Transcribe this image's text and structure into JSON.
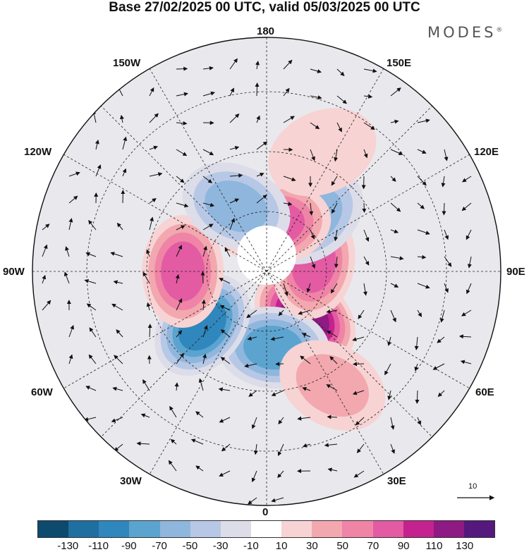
{
  "title": "Base 27/02/2025 00 UTC, valid 05/03/2025 00 UTC",
  "brand": "MODES",
  "brand_mark": "®",
  "longitude_labels": {
    "top": "180",
    "bottom": "0",
    "left": "90W",
    "right": "90E",
    "upper_left_1": "150W",
    "upper_left_2": "120W",
    "upper_right_1": "150E",
    "upper_right_2": "120E",
    "lower_left_1": "60W",
    "lower_left_2": "30W",
    "lower_right_1": "60E",
    "lower_right_2": "30E"
  },
  "reference_vector": "10",
  "colorbar": {
    "colors": [
      "#0d4a6e",
      "#1f6fa0",
      "#2f87bd",
      "#5ba4cf",
      "#8fb6dd",
      "#b7c8e6",
      "#dddde9",
      "#ffffff",
      "#f7d3d4",
      "#f2a8ae",
      "#ef84a7",
      "#e35ba3",
      "#c4238f",
      "#8e1a83",
      "#55187d"
    ],
    "ticks": [
      "-130",
      "-110",
      "-90",
      "-70",
      "-50",
      "-30",
      "-10",
      "10",
      "30",
      "50",
      "70",
      "90",
      "110",
      "130"
    ]
  },
  "anomalies": [
    {
      "lon": 40,
      "lat": 65,
      "value": 120
    },
    {
      "lon": 5,
      "lat": 58,
      "value": -95
    },
    {
      "lon": -50,
      "lat": 55,
      "value": -105
    },
    {
      "lon": -90,
      "lat": 55,
      "value": 95
    },
    {
      "lon": 100,
      "lat": 70,
      "value": 90
    },
    {
      "lon": 140,
      "lat": 60,
      "value": -75
    },
    {
      "lon": 170,
      "lat": 70,
      "value": 80
    },
    {
      "lon": -155,
      "lat": 60,
      "value": -70
    },
    {
      "lon": 30,
      "lat": 35,
      "value": 45
    },
    {
      "lon": 155,
      "lat": 35,
      "value": 35
    }
  ]
}
